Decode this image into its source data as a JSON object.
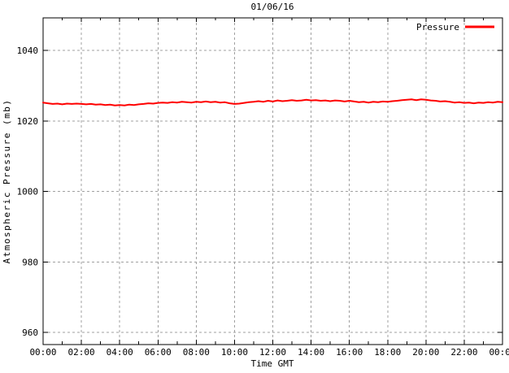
{
  "title": "01/06/16",
  "legend": {
    "label": "Pressure",
    "color": "#ff0000"
  },
  "axes": {
    "x_label": "Time GMT",
    "y_label": "Atmospheric Pressure (mb)",
    "x_tick_labels": [
      "00:00",
      "02:00",
      "04:00",
      "06:00",
      "08:00",
      "10:00",
      "12:00",
      "14:00",
      "16:00",
      "18:00",
      "20:00",
      "22:00",
      "00:00"
    ],
    "y_tick_labels": [
      "1040",
      "1020",
      "1000",
      "980",
      "960"
    ]
  },
  "colors": {
    "background": "#ffffff",
    "frame": "#000000",
    "grid": "#a0a0a0",
    "text": "#000000",
    "line": "#ff0000"
  },
  "chart_data": {
    "type": "line",
    "title": "01/06/16",
    "xlabel": "Time GMT",
    "ylabel": "Atmospheric Pressure (mb)",
    "x_unit": "hours",
    "xlim": [
      0,
      24
    ],
    "ylim": [
      956,
      1049
    ],
    "x_major_ticks_hours": [
      0,
      2,
      4,
      6,
      8,
      10,
      12,
      14,
      16,
      18,
      20,
      22,
      24
    ],
    "x_minor_tick_interval_hours": 1,
    "y_major_ticks": [
      1040,
      1020,
      1000,
      980,
      960
    ],
    "grid": true,
    "grid_style": "dashed",
    "legend_position": "top-right-inside",
    "series": [
      {
        "name": "Pressure",
        "color": "#ff0000",
        "start_time": "00:00",
        "interval_minutes": 15,
        "values_mb": [
          1025.2,
          1025.0,
          1024.8,
          1024.9,
          1024.7,
          1024.9,
          1024.8,
          1024.9,
          1024.8,
          1024.7,
          1024.8,
          1024.6,
          1024.7,
          1024.5,
          1024.6,
          1024.4,
          1024.5,
          1024.4,
          1024.6,
          1024.5,
          1024.7,
          1024.8,
          1025.0,
          1024.9,
          1025.1,
          1025.2,
          1025.1,
          1025.3,
          1025.2,
          1025.4,
          1025.3,
          1025.2,
          1025.4,
          1025.3,
          1025.5,
          1025.3,
          1025.4,
          1025.2,
          1025.3,
          1025.0,
          1024.8,
          1024.9,
          1025.1,
          1025.3,
          1025.4,
          1025.6,
          1025.4,
          1025.7,
          1025.5,
          1025.8,
          1025.6,
          1025.7,
          1025.9,
          1025.7,
          1025.8,
          1026.0,
          1025.8,
          1025.9,
          1025.7,
          1025.8,
          1025.6,
          1025.8,
          1025.7,
          1025.5,
          1025.7,
          1025.5,
          1025.3,
          1025.4,
          1025.2,
          1025.4,
          1025.3,
          1025.5,
          1025.4,
          1025.6,
          1025.7,
          1025.9,
          1026.0,
          1026.1,
          1025.9,
          1026.1,
          1026.0,
          1025.8,
          1025.7,
          1025.5,
          1025.6,
          1025.4,
          1025.2,
          1025.3,
          1025.1,
          1025.2,
          1025.0,
          1025.2,
          1025.1,
          1025.3,
          1025.2,
          1025.4,
          1025.3
        ]
      }
    ]
  }
}
